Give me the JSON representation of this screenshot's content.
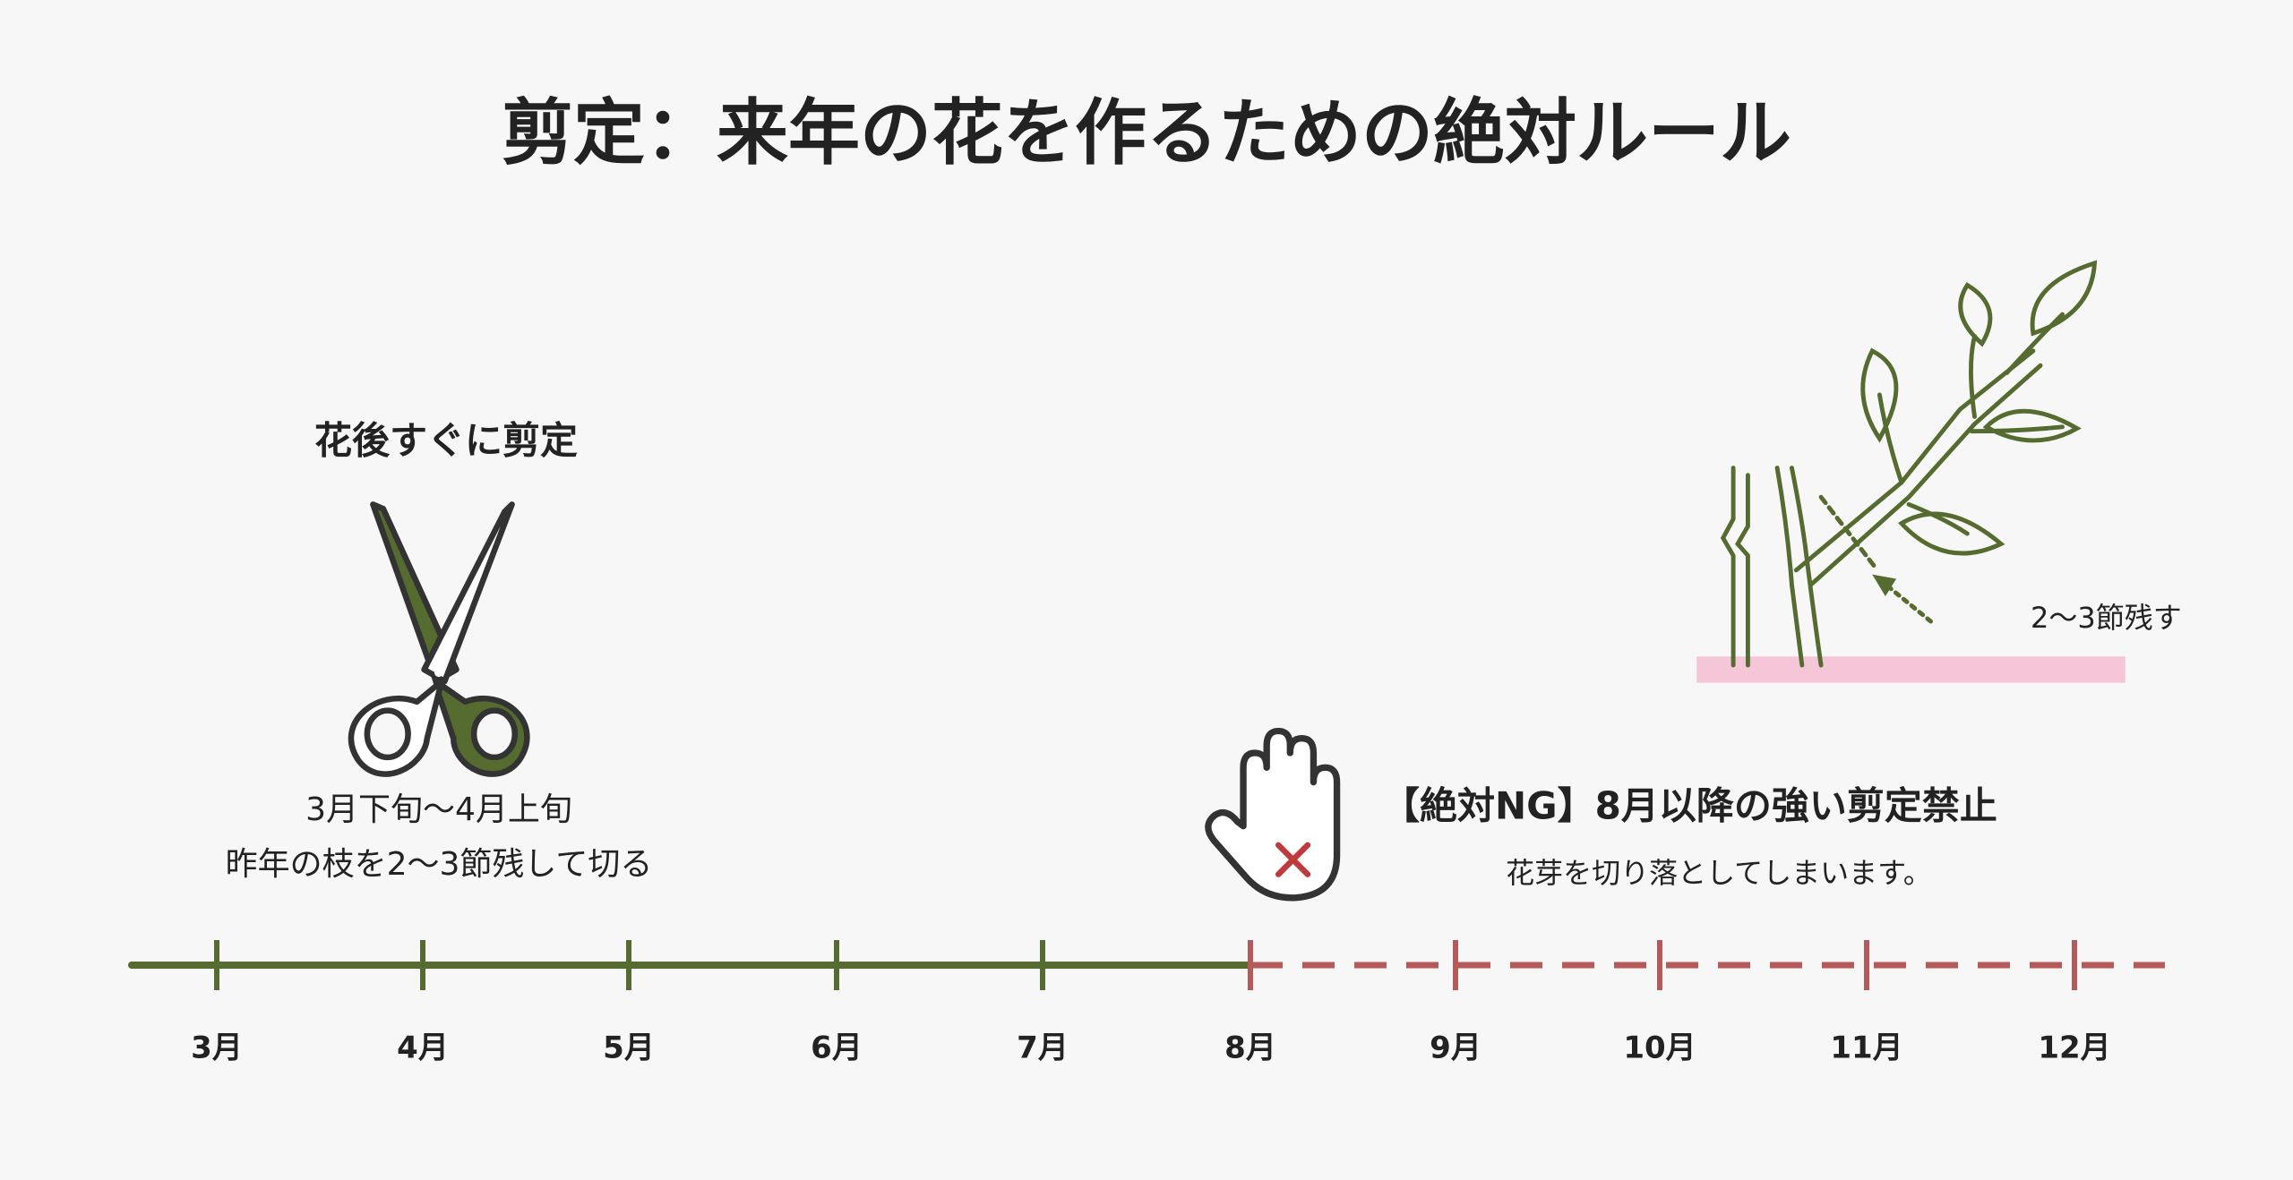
{
  "title": "剪定：来年の花を作るための絶対ルール",
  "left": {
    "heading": "花後すぐに剪定",
    "period": "3月下旬〜4月上旬",
    "instruction": "昨年の枝を2〜3節残して切る"
  },
  "warning": {
    "heading": "【絶対NG】8月以降の強い剪定禁止",
    "note": "花芽を切り落としてしまいます。"
  },
  "illustration": {
    "annotation": "2〜3節残す"
  },
  "timeline": {
    "months": [
      "3月",
      "4月",
      "5月",
      "6月",
      "7月",
      "8月",
      "9月",
      "10月",
      "11月",
      "12月"
    ]
  }
}
